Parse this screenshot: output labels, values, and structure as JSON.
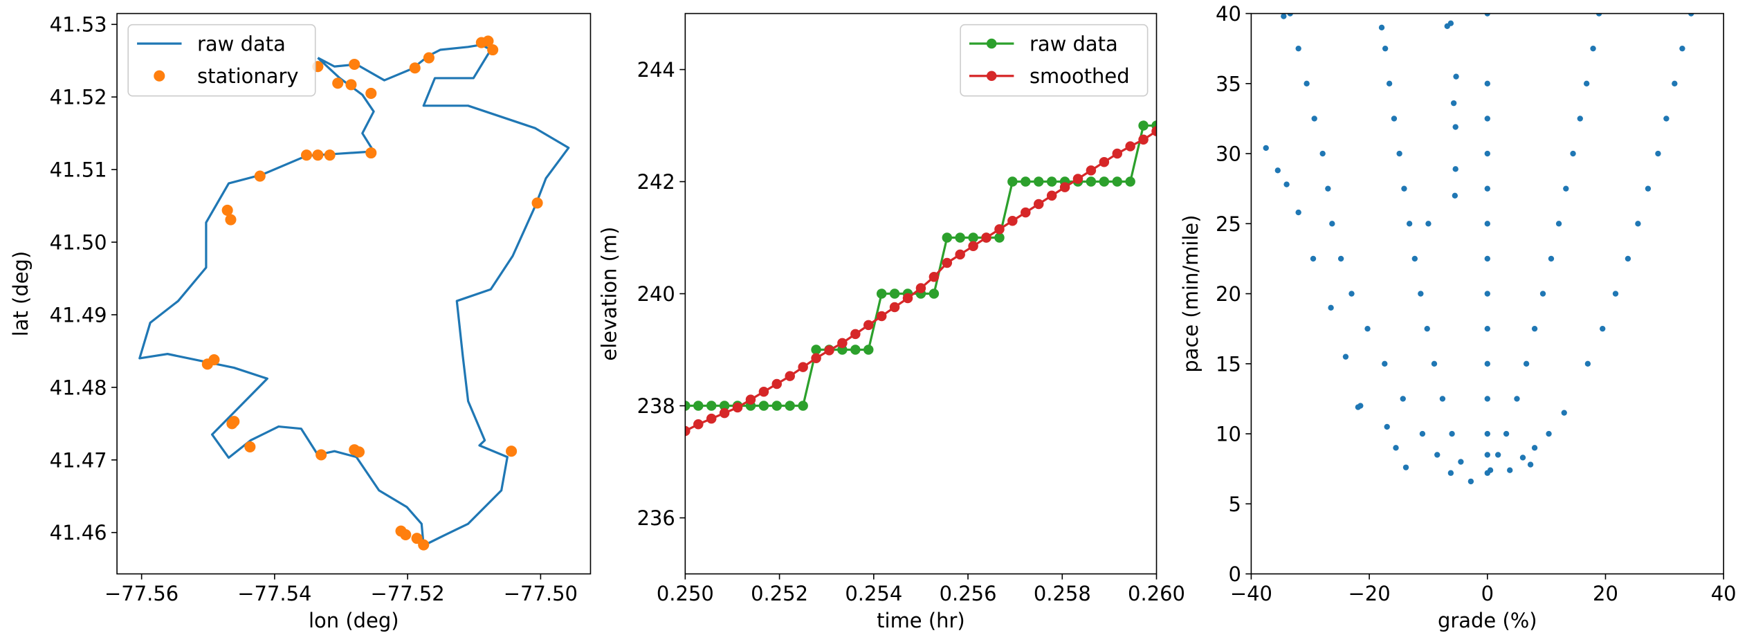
{
  "chart_data": [
    {
      "type": "line",
      "xlabel": "lon (deg)",
      "ylabel": "lat (deg)",
      "xlim": [
        -77.5637,
        -77.4925
      ],
      "ylim": [
        41.4543,
        41.5315
      ],
      "xticks": [
        {
          "value": -77.56,
          "label": "−77.56"
        },
        {
          "value": -77.54,
          "label": "−77.54"
        },
        {
          "value": -77.52,
          "label": "−77.52"
        },
        {
          "value": -77.5,
          "label": "−77.50"
        }
      ],
      "yticks": [
        41.46,
        41.47,
        41.48,
        41.49,
        {
          "value": 41.5,
          "label": "41.50"
        },
        41.51,
        41.52,
        41.53
      ],
      "legend": "upper left",
      "series": [
        {
          "name": "raw data",
          "color": "#1f77b4",
          "style": "line",
          "x": [
            -77.5335,
            -77.531,
            -77.5277,
            -77.5235,
            -77.5193,
            -77.5168,
            -77.5151,
            -77.5109,
            -77.5089,
            -77.5075,
            -77.5101,
            -77.5159,
            -77.5176,
            -77.5109,
            -77.5008,
            -77.4958,
            -77.4992,
            -77.5008,
            -77.5042,
            -77.5075,
            -77.5126,
            -77.5117,
            -77.5109,
            -77.5084,
            -77.5092,
            -77.505,
            -77.5059,
            -77.5109,
            -77.5143,
            -77.5176,
            -77.5179,
            -77.5201,
            -77.5243,
            -77.5277,
            -77.531,
            -77.5335,
            -77.536,
            -77.5394,
            -77.5436,
            -77.5469,
            -77.5494,
            -77.5453,
            -77.5411,
            -77.5461,
            -77.5503,
            -77.5561,
            -77.5603,
            -77.5587,
            -77.5545,
            -77.5503,
            -77.5503,
            -77.5469,
            -77.5419,
            -77.5352,
            -77.5302,
            -77.5251,
            -77.5268,
            -77.5251,
            -77.5268,
            -77.5302,
            -77.5335
          ],
          "values": [
            41.5254,
            41.5242,
            41.5245,
            41.5223,
            41.5239,
            41.5257,
            41.5265,
            41.5269,
            41.5272,
            41.5265,
            41.5226,
            41.5226,
            41.5188,
            41.5188,
            41.5157,
            41.513,
            41.5088,
            41.505,
            41.4981,
            41.4935,
            41.4919,
            41.4843,
            41.4781,
            41.4727,
            41.472,
            41.4704,
            41.4658,
            41.4612,
            41.4597,
            41.4582,
            41.4612,
            41.4635,
            41.4658,
            41.4704,
            41.4712,
            41.4707,
            41.4743,
            41.4746,
            41.4727,
            41.4703,
            41.4735,
            41.4773,
            41.4812,
            41.4827,
            41.4835,
            41.4846,
            41.484,
            41.4889,
            41.4919,
            41.4965,
            41.5027,
            41.5081,
            41.5093,
            41.5119,
            41.5122,
            41.5125,
            41.515,
            41.518,
            41.5203,
            41.5226,
            41.5254
          ]
        },
        {
          "name": "stationary",
          "color": "#ff7f0e",
          "style": "markers",
          "x": [
            -77.5335,
            -77.5305,
            -77.5285,
            -77.528,
            -77.5255,
            -77.5189,
            -77.5168,
            -77.5089,
            -77.5079,
            -77.5072,
            -77.5352,
            -77.5335,
            -77.5317,
            -77.5255,
            -77.5422,
            -77.5471,
            -77.5466,
            -77.5005,
            -77.5501,
            -77.5491,
            -77.5464,
            -77.5461,
            -77.5437,
            -77.533,
            -77.528,
            -77.5273,
            -77.521,
            -77.5203,
            -77.5186,
            -77.5176,
            -77.5044
          ],
          "values": [
            41.5242,
            41.5219,
            41.5217,
            41.5245,
            41.5205,
            41.524,
            41.5254,
            41.5275,
            41.5277,
            41.5265,
            41.512,
            41.512,
            41.512,
            41.5123,
            41.5091,
            41.5044,
            41.5031,
            41.5054,
            41.4832,
            41.4838,
            41.475,
            41.4753,
            41.4718,
            41.4707,
            41.4714,
            41.4711,
            41.4602,
            41.4597,
            41.4592,
            41.4583,
            41.4712
          ]
        }
      ]
    },
    {
      "type": "line",
      "xlabel": "time (hr)",
      "ylabel": "elevation (m)",
      "xlim": [
        0.25,
        0.26
      ],
      "ylim": [
        235,
        245
      ],
      "xticks": [
        {
          "value": 0.25,
          "label": "0.250"
        },
        0.252,
        0.254,
        0.256,
        0.258,
        {
          "value": 0.26,
          "label": "0.260"
        }
      ],
      "yticks": [
        236,
        238,
        240,
        242,
        244
      ],
      "legend": "upper right",
      "series": [
        {
          "name": "raw data",
          "color": "#2ca02c",
          "style": "line+markers",
          "x": [
            0.25,
            0.250278,
            0.250556,
            0.250833,
            0.251111,
            0.251389,
            0.251667,
            0.251944,
            0.252222,
            0.2525,
            0.252778,
            0.253056,
            0.253333,
            0.253611,
            0.253889,
            0.254167,
            0.254444,
            0.254722,
            0.255,
            0.255278,
            0.255556,
            0.255833,
            0.256111,
            0.256389,
            0.256667,
            0.256944,
            0.257222,
            0.2575,
            0.257778,
            0.258056,
            0.258333,
            0.258611,
            0.258889,
            0.259167,
            0.259444,
            0.259722,
            0.26
          ],
          "values": [
            238,
            238,
            238,
            238,
            238,
            238,
            238,
            238,
            238,
            238,
            239,
            239,
            239,
            239,
            239,
            240,
            240,
            240,
            240,
            240,
            241,
            241,
            241,
            241,
            241,
            242,
            242,
            242,
            242,
            242,
            242,
            242,
            242,
            242,
            242,
            243,
            243
          ]
        },
        {
          "name": "smoothed",
          "color": "#d62728",
          "style": "line+markers",
          "x": [
            0.25,
            0.250278,
            0.250556,
            0.250833,
            0.251111,
            0.251389,
            0.251667,
            0.251944,
            0.252222,
            0.2525,
            0.252778,
            0.253056,
            0.253333,
            0.253611,
            0.253889,
            0.254167,
            0.254444,
            0.254722,
            0.255,
            0.255278,
            0.255556,
            0.255833,
            0.256111,
            0.256389,
            0.256667,
            0.256944,
            0.257222,
            0.2575,
            0.257778,
            0.258056,
            0.258333,
            0.258611,
            0.258889,
            0.259167,
            0.259444,
            0.259722,
            0.26
          ],
          "values": [
            237.55,
            237.67,
            237.77,
            237.87,
            237.97,
            238.11,
            238.25,
            238.39,
            238.53,
            238.69,
            238.85,
            238.99,
            239.12,
            239.28,
            239.44,
            239.6,
            239.76,
            239.92,
            240.1,
            240.3,
            240.55,
            240.7,
            240.85,
            241.0,
            241.15,
            241.3,
            241.45,
            241.6,
            241.75,
            241.9,
            242.05,
            242.2,
            242.35,
            242.5,
            242.63,
            242.75,
            242.9
          ]
        }
      ]
    },
    {
      "type": "scatter",
      "xlabel": "grade (%)",
      "ylabel": "pace (min/mile)",
      "xlim": [
        -40,
        40
      ],
      "ylim": [
        0,
        40
      ],
      "xticks": [
        {
          "value": -40,
          "label": "−40"
        },
        {
          "value": -20,
          "label": "−20"
        },
        0,
        20,
        40
      ],
      "yticks": [
        0,
        5,
        10,
        15,
        20,
        25,
        30,
        35,
        40
      ],
      "series": [
        {
          "color": "#1f77b4",
          "x": [
            3.8,
            6,
            8,
            10.4,
            13,
            17,
            19.5,
            21.7,
            23.8,
            25.5,
            27.2,
            28.9,
            30.3,
            31.7,
            33,
            34.5,
            0.5,
            1.8,
            3.2,
            5,
            6.6,
            8,
            9.4,
            10.8,
            12.1,
            13.3,
            14.5,
            15.7,
            16.8,
            17.9,
            18.9,
            0,
            0,
            0,
            0,
            0,
            0,
            0,
            0,
            0,
            0,
            0,
            0,
            0,
            0,
            -2.8,
            -4.5,
            -6,
            -7.6,
            -9,
            -10.2,
            -11.3,
            -12.3,
            -13.2,
            -14.1,
            -14.9,
            -15.8,
            -16.6,
            -17.3,
            -17.9,
            -6.2,
            -8.5,
            -11,
            -14.3,
            -17.4,
            -20.3,
            -23,
            -24.8,
            -26.3,
            -27,
            -27.9,
            -29.3,
            -30.6,
            -32,
            -33.4,
            -13.8,
            -15.5,
            -17,
            -21.5,
            -24,
            -26.5,
            -29.5,
            -32,
            -34,
            -35.5,
            -37.5,
            -34.5,
            -6.8,
            -6.2,
            -5.3,
            -5.7,
            -5.4,
            -5.4,
            -5.5,
            -10,
            7.3,
            -21.9
          ],
          "values": [
            7.4,
            8.3,
            9,
            10,
            11.5,
            15,
            17.5,
            20,
            22.5,
            25,
            27.5,
            30,
            32.5,
            35,
            37.5,
            40,
            7.4,
            8.5,
            10,
            12.5,
            15,
            17.5,
            20,
            22.5,
            25,
            27.5,
            30,
            32.5,
            35,
            37.5,
            40,
            7.2,
            8.5,
            10,
            12.5,
            15,
            17.5,
            20,
            22.5,
            25,
            27.5,
            30,
            32.5,
            35,
            40,
            6.6,
            8,
            10,
            12.5,
            15,
            17.5,
            20,
            22.5,
            25,
            27.5,
            30,
            32.5,
            35,
            37.5,
            39,
            7.2,
            8.5,
            10,
            12.5,
            15,
            17.5,
            20,
            22.5,
            25,
            27.5,
            30,
            32.5,
            35,
            37.5,
            40,
            7.6,
            9,
            10.5,
            12,
            15.5,
            19,
            22.5,
            25.8,
            27.8,
            28.8,
            30.4,
            39.8,
            39.1,
            39.3,
            35.5,
            33.6,
            31.9,
            28.9,
            27,
            25,
            7.8,
            11.9
          ]
        }
      ]
    }
  ]
}
